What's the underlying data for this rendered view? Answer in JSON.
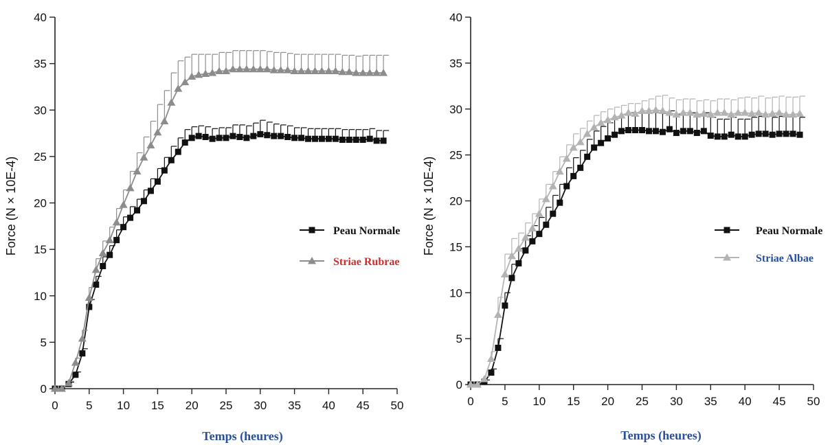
{
  "chart_data": [
    {
      "type": "line",
      "xlabel": "Temps (heures)",
      "ylabel": "Force (N × 10E-4)",
      "xlim": [
        0,
        50
      ],
      "ylim": [
        0,
        40
      ],
      "x_ticks": [
        0,
        5,
        10,
        15,
        20,
        25,
        30,
        35,
        40,
        45,
        50
      ],
      "y_ticks": [
        0,
        5,
        10,
        15,
        20,
        25,
        30,
        35,
        40
      ],
      "x_tick_labels": [
        "0",
        "5",
        "10",
        "15",
        "20",
        "25",
        "30",
        "35",
        "40",
        "45",
        "50"
      ],
      "y_tick_labels": [
        "0",
        "5",
        "10",
        "15",
        "20",
        "25",
        "30",
        "35",
        "40"
      ],
      "grid": false,
      "legend_position": "right",
      "series": [
        {
          "name": "Peau Normale",
          "color": "#111111",
          "label_color": "#111111",
          "marker": "square",
          "x": [
            0,
            1,
            2,
            3,
            4,
            5,
            6,
            7,
            8,
            9,
            10,
            11,
            12,
            13,
            14,
            15,
            16,
            17,
            18,
            19,
            20,
            21,
            22,
            23,
            24,
            25,
            26,
            27,
            28,
            29,
            30,
            31,
            32,
            33,
            34,
            35,
            36,
            37,
            38,
            39,
            40,
            41,
            42,
            43,
            44,
            45,
            46,
            47,
            48
          ],
          "y": [
            0,
            0,
            0.5,
            1.5,
            3.8,
            8.8,
            11.2,
            13.2,
            14.4,
            16.0,
            17.4,
            18.4,
            19.2,
            20.2,
            21.3,
            22.3,
            23.5,
            24.6,
            25.5,
            26.5,
            27.0,
            27.2,
            27.1,
            26.9,
            27.0,
            27.0,
            27.2,
            27.1,
            27.0,
            27.2,
            27.4,
            27.3,
            27.2,
            27.2,
            27.1,
            27.0,
            27.0,
            26.9,
            26.9,
            26.9,
            26.9,
            26.9,
            26.8,
            26.8,
            26.8,
            26.8,
            26.9,
            26.7,
            26.7
          ],
          "error": [
            0,
            0,
            0.2,
            0.3,
            0.5,
            0.8,
            0.9,
            1.0,
            1.0,
            1.1,
            1.1,
            1.2,
            1.2,
            1.2,
            1.3,
            1.4,
            1.4,
            1.5,
            1.5,
            1.4,
            1.2,
            1.1,
            1.1,
            1.1,
            1.1,
            1.1,
            1.2,
            1.3,
            1.3,
            1.4,
            1.5,
            1.4,
            1.3,
            1.2,
            1.2,
            1.1,
            1.1,
            1.1,
            1.1,
            1.1,
            1.1,
            1.1,
            1.1,
            1.1,
            1.1,
            1.1,
            1.1,
            1.1,
            1.1
          ]
        },
        {
          "name": "Striae Rubrae",
          "color": "#8c8c8c",
          "label_color": "#d42a2a",
          "marker": "triangle",
          "x": [
            0,
            1,
            2,
            3,
            4,
            5,
            6,
            7,
            8,
            9,
            10,
            11,
            12,
            13,
            14,
            15,
            16,
            17,
            18,
            19,
            20,
            21,
            22,
            23,
            24,
            25,
            26,
            27,
            28,
            29,
            30,
            31,
            32,
            33,
            34,
            35,
            36,
            37,
            38,
            39,
            40,
            41,
            42,
            43,
            44,
            45,
            46,
            47,
            48
          ],
          "y": [
            0,
            0,
            0.6,
            2.8,
            5.4,
            9.8,
            12.8,
            14.6,
            16.0,
            17.9,
            19.8,
            21.6,
            23.4,
            24.9,
            26.2,
            27.6,
            28.8,
            30.8,
            32.3,
            33.0,
            33.6,
            33.8,
            33.9,
            34.0,
            34.2,
            34.2,
            34.4,
            34.4,
            34.4,
            34.4,
            34.4,
            34.4,
            34.3,
            34.3,
            34.3,
            34.2,
            34.2,
            34.2,
            34.2,
            34.2,
            34.2,
            34.2,
            34.1,
            34.1,
            34.0,
            34.0,
            34.0,
            34.0,
            34.0
          ],
          "error": [
            0,
            0,
            0.2,
            0.5,
            0.9,
            1.1,
            1.2,
            1.3,
            1.4,
            1.5,
            1.6,
            1.8,
            2.0,
            2.2,
            2.6,
            3.0,
            3.3,
            3.2,
            3.0,
            2.7,
            2.4,
            2.2,
            2.1,
            2.0,
            2.0,
            2.0,
            2.0,
            2.0,
            2.0,
            2.0,
            2.0,
            1.9,
            1.9,
            1.9,
            1.8,
            1.8,
            1.8,
            1.8,
            1.8,
            1.8,
            1.8,
            1.8,
            1.8,
            1.8,
            1.8,
            1.9,
            1.9,
            1.9,
            1.9
          ]
        }
      ]
    },
    {
      "type": "line",
      "xlabel": "Temps (heures)",
      "ylabel": "Force (N × 10E-4)",
      "xlim": [
        0,
        50
      ],
      "ylim": [
        0,
        40
      ],
      "x_ticks": [
        0,
        5,
        10,
        15,
        20,
        25,
        30,
        35,
        40,
        45,
        50
      ],
      "y_ticks": [
        0,
        5,
        10,
        15,
        20,
        25,
        30,
        35,
        40
      ],
      "x_tick_labels": [
        "0",
        "5",
        "10",
        "15",
        "20",
        "25",
        "30",
        "35",
        "40",
        "45",
        "50"
      ],
      "y_tick_labels": [
        "0",
        "5",
        "10",
        "15",
        "20",
        "25",
        "30",
        "35",
        "40"
      ],
      "grid": false,
      "legend_position": "right",
      "series": [
        {
          "name": "Peau Normale",
          "color": "#111111",
          "label_color": "#111111",
          "marker": "square",
          "x": [
            0,
            1,
            2,
            3,
            4,
            5,
            6,
            7,
            8,
            9,
            10,
            11,
            12,
            13,
            14,
            15,
            16,
            17,
            18,
            19,
            20,
            21,
            22,
            23,
            24,
            25,
            26,
            27,
            28,
            29,
            30,
            31,
            32,
            33,
            34,
            35,
            36,
            37,
            38,
            39,
            40,
            41,
            42,
            43,
            44,
            45,
            46,
            47,
            48
          ],
          "y": [
            0,
            0,
            0.3,
            1.3,
            4.0,
            8.6,
            11.6,
            13.2,
            14.6,
            15.6,
            16.4,
            17.4,
            18.6,
            19.8,
            21.6,
            22.7,
            23.6,
            24.8,
            25.8,
            26.3,
            26.8,
            27.2,
            27.6,
            27.7,
            27.7,
            27.7,
            27.6,
            27.6,
            27.5,
            27.8,
            27.4,
            27.6,
            27.6,
            27.4,
            27.6,
            27.1,
            27.0,
            27.0,
            27.2,
            27.0,
            27.0,
            27.2,
            27.3,
            27.3,
            27.2,
            27.3,
            27.3,
            27.3,
            27.2
          ],
          "error": [
            0,
            0,
            0.2,
            0.4,
            1.0,
            1.4,
            1.5,
            1.6,
            1.6,
            1.7,
            1.8,
            1.9,
            2.0,
            2.0,
            2.0,
            2.0,
            1.9,
            1.9,
            1.8,
            1.8,
            1.7,
            1.8,
            1.8,
            1.9,
            1.9,
            1.9,
            2.0,
            2.0,
            2.0,
            2.0,
            2.0,
            2.0,
            2.0,
            2.0,
            2.0,
            2.0,
            1.9,
            1.9,
            1.9,
            1.9,
            1.9,
            1.9,
            1.9,
            1.9,
            1.9,
            1.9,
            1.9,
            1.9,
            1.9
          ]
        },
        {
          "name": "Striae Albae",
          "color": "#b3b3b3",
          "label_color": "#2a4f9a",
          "marker": "triangle",
          "x": [
            0,
            1,
            2,
            3,
            4,
            5,
            6,
            7,
            8,
            9,
            10,
            11,
            12,
            13,
            14,
            15,
            16,
            17,
            18,
            19,
            20,
            21,
            22,
            23,
            24,
            25,
            26,
            27,
            28,
            29,
            30,
            31,
            32,
            33,
            34,
            35,
            36,
            37,
            38,
            39,
            40,
            41,
            42,
            43,
            44,
            45,
            46,
            47,
            48
          ],
          "y": [
            0,
            0,
            0.6,
            2.8,
            7.6,
            12.0,
            14.0,
            14.8,
            16.0,
            17.0,
            18.6,
            20.2,
            21.6,
            23.2,
            24.6,
            25.8,
            26.4,
            27.3,
            28.0,
            28.5,
            28.8,
            29.1,
            29.3,
            29.6,
            29.5,
            29.8,
            29.8,
            29.9,
            29.8,
            29.6,
            29.4,
            29.6,
            29.6,
            29.4,
            29.5,
            29.4,
            29.6,
            29.6,
            29.4,
            29.6,
            29.6,
            29.5,
            29.6,
            29.4,
            29.5,
            29.6,
            29.4,
            29.4,
            29.5
          ],
          "error": [
            0,
            0,
            0.3,
            0.8,
            1.9,
            2.2,
            1.9,
            1.7,
            1.6,
            1.6,
            1.6,
            1.6,
            1.6,
            1.6,
            1.5,
            1.5,
            1.5,
            1.4,
            1.3,
            1.2,
            1.2,
            1.1,
            1.1,
            1.0,
            1.1,
            1.1,
            1.3,
            1.5,
            1.7,
            1.6,
            1.6,
            1.5,
            1.5,
            1.5,
            1.5,
            1.5,
            1.5,
            1.5,
            1.6,
            1.6,
            1.7,
            1.7,
            1.8,
            1.8,
            1.8,
            1.8,
            1.9,
            1.9,
            1.9
          ]
        }
      ]
    }
  ]
}
